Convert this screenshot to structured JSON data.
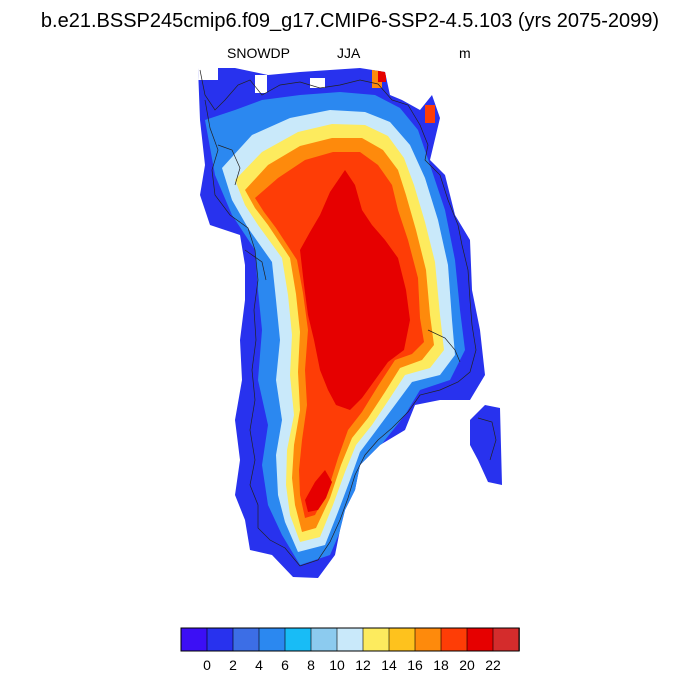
{
  "title": "b.e21.BSSP245cmip6.f09_g17.CMIP6-SSP2-4.5.103 (yrs 2075-2099)",
  "variable": "SNOWDP",
  "season": "JJA",
  "units": "m",
  "colorbar": {
    "colors": [
      "#3c0ff5",
      "#2832ee",
      "#3c6ee6",
      "#2b88f0",
      "#18bcf6",
      "#8ccbef",
      "#c9e9fa",
      "#fdeb5e",
      "#fec21d",
      "#fe8a0c",
      "#fe3d06",
      "#e60000",
      "#d42c2c"
    ],
    "tick_labels": [
      "0",
      "2",
      "4",
      "6",
      "8",
      "10",
      "12",
      "14",
      "16",
      "18",
      "20",
      "22"
    ]
  }
}
